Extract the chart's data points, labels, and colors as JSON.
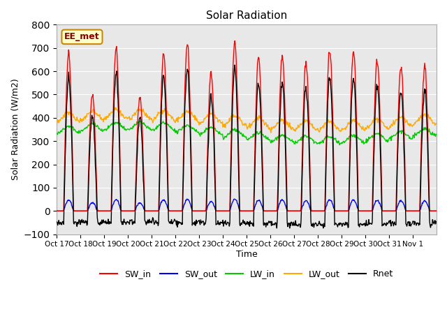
{
  "title": "Solar Radiation",
  "ylabel": "Solar Radiation (W/m2)",
  "xlabel": "Time",
  "ylim": [
    -100,
    800
  ],
  "yticks": [
    -100,
    0,
    100,
    200,
    300,
    400,
    500,
    600,
    700,
    800
  ],
  "xtick_labels": [
    "Oct 17",
    "Oct 18",
    "Oct 19",
    "Oct 20",
    "Oct 21",
    "Oct 22",
    "Oct 23",
    "Oct 24",
    "Oct 25",
    "Oct 26",
    "Oct 27",
    "Oct 28",
    "Oct 29",
    "Oct 30",
    "Oct 31",
    "Nov 1"
  ],
  "colors": {
    "SW_in": "#ff0000",
    "SW_out": "#0000ff",
    "LW_in": "#00cc00",
    "LW_out": "#ffaa00",
    "Rnet": "#000000"
  },
  "bg_color": "#e8e8e8",
  "annotation_text": "EE_met",
  "annotation_bg": "#ffffcc",
  "annotation_border": "#cc8800",
  "annotation_text_color": "#880000",
  "n_days": 16,
  "dt_hours": 0.5,
  "day_peaks_SW": [
    680,
    500,
    700,
    490,
    680,
    720,
    590,
    720,
    660,
    670,
    640,
    690,
    690,
    650,
    620,
    620
  ]
}
